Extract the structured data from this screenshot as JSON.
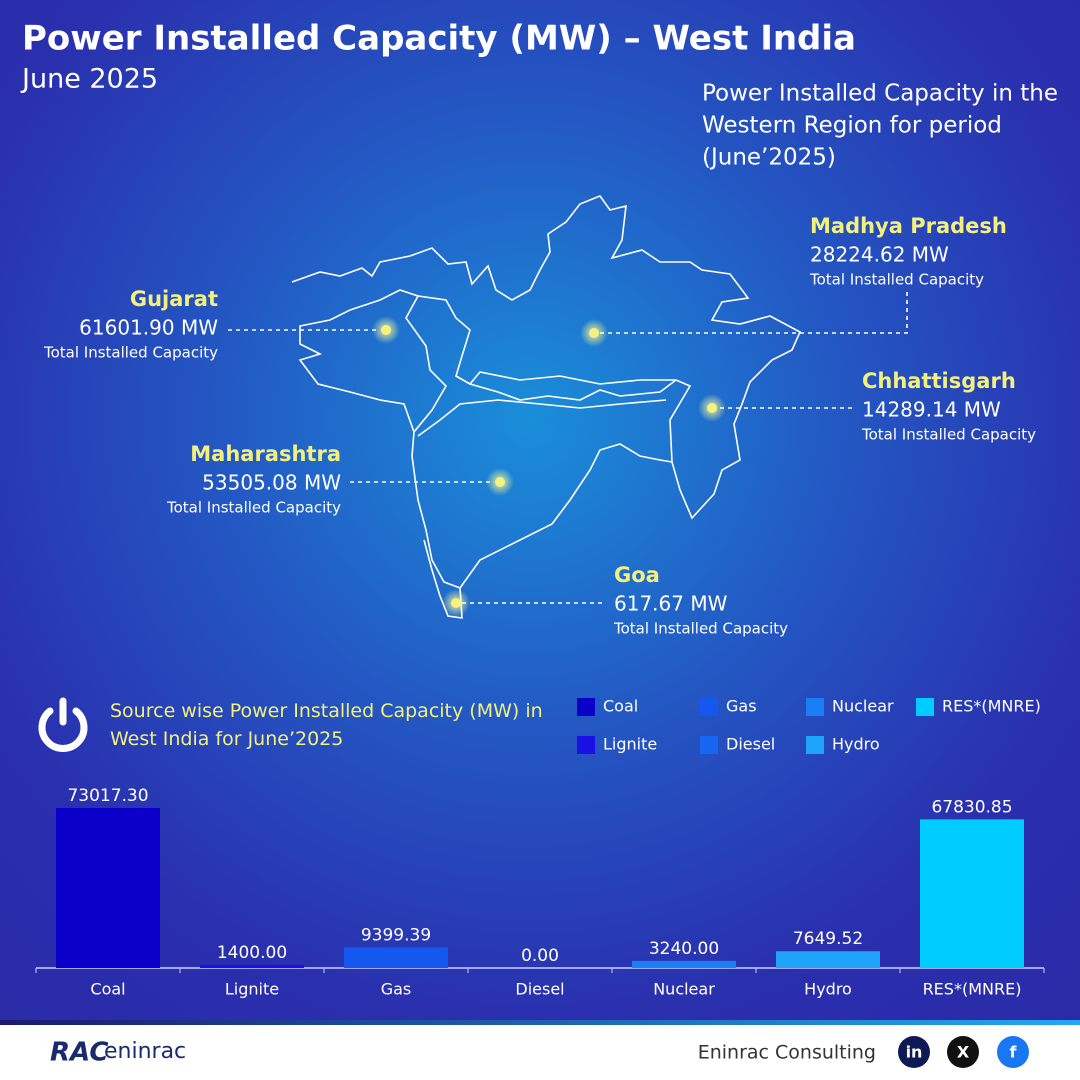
{
  "header": {
    "title": "Power Installed Capacity (MW) – West India",
    "subtitle": "June 2025",
    "description": [
      "Power Installed Capacity in the",
      "Western Region for period",
      "(June’2025)"
    ]
  },
  "states": [
    {
      "name": "Gujarat",
      "capacity": "61601.90 MW",
      "note": "Total Installed Capacity"
    },
    {
      "name": "Madhya Pradesh",
      "capacity": "28224.62 MW",
      "note": "Total Installed Capacity"
    },
    {
      "name": "Chhattisgarh",
      "capacity": "14289.14 MW",
      "note": "Total Installed Capacity"
    },
    {
      "name": "Maharashtra",
      "capacity": "53505.08 MW",
      "note": "Total Installed Capacity"
    },
    {
      "name": "Goa",
      "capacity": "617.67 MW",
      "note": "Total Installed Capacity"
    }
  ],
  "chart_data": {
    "type": "bar",
    "title": "Source wise Power Installed Capacity (MW) in West India for June’2025",
    "categories": [
      "Coal",
      "Lignite",
      "Gas",
      "Diesel",
      "Nuclear",
      "Hydro",
      "RES*(MNRE)"
    ],
    "values": [
      73017.3,
      1400.0,
      9399.39,
      0.0,
      3240.0,
      7649.52,
      67830.85
    ],
    "value_labels": [
      "73017.30",
      "1400.00",
      "9399.39",
      "0.00",
      "3240.00",
      "7649.52",
      "67830.85"
    ],
    "colors": [
      "#0b00c9",
      "#1a10e6",
      "#1458f0",
      "#1666f2",
      "#1a7ef5",
      "#1ea4f8",
      "#00cdff"
    ]
  },
  "footer": {
    "logo": [
      "RAC",
      "eninrac"
    ],
    "company": "Eninrac Consulting",
    "social": [
      "in",
      "X",
      "f"
    ]
  }
}
